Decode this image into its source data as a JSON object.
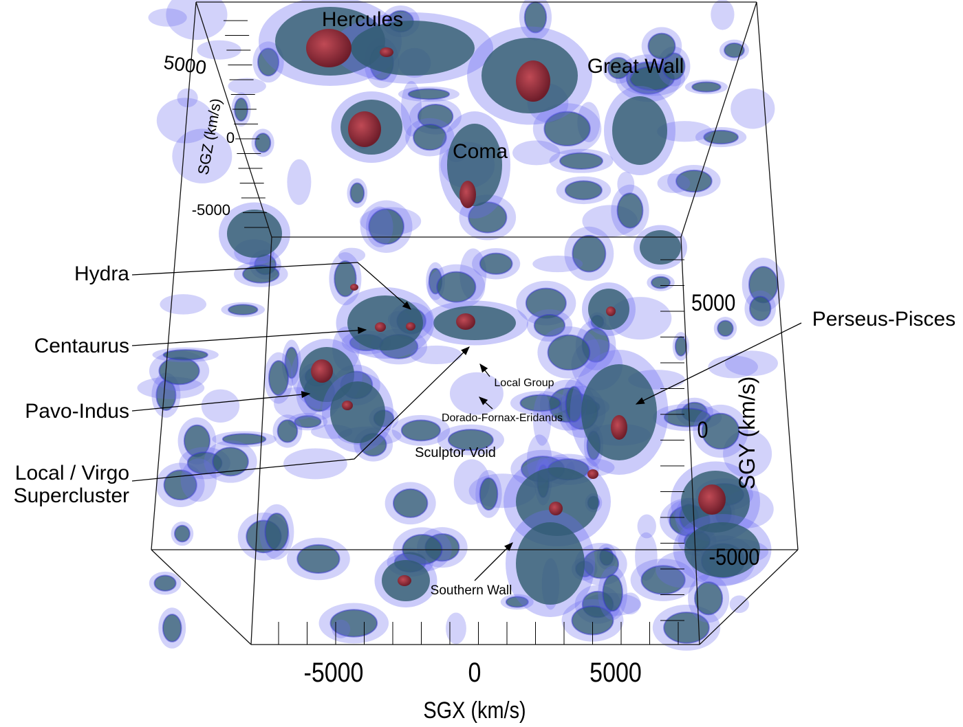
{
  "axes": {
    "sgx": {
      "title": "SGX (km/s)",
      "ticks": [
        -5000,
        0,
        5000
      ]
    },
    "sgy": {
      "title": "SGY (km/s)",
      "ticks": [
        5000,
        0,
        -5000
      ]
    },
    "sgz": {
      "title": "SGZ (km/s)",
      "ticks": [
        5000,
        0,
        -5000
      ]
    }
  },
  "labels": {
    "hercules": "Hercules",
    "great_wall": "Great Wall",
    "coma": "Coma",
    "hydra": "Hydra",
    "centaurus": "Centaurus",
    "pavo_indus": "Pavo-Indus",
    "local_virgo": [
      "Local / Virgo",
      "Supercluster"
    ],
    "local_group": "Local Group",
    "dorado": "Dorado-Fornax-Eridanus",
    "sculptor_void": "Sculptor Void",
    "southern_wall": "Southern Wall",
    "perseus_pisces": "Perseus-Pisces"
  }
}
